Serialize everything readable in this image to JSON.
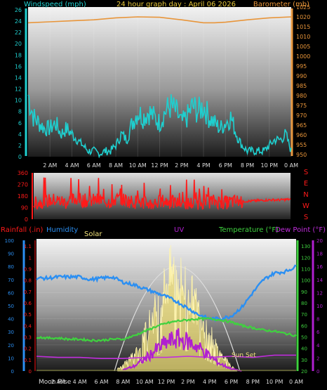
{
  "chart_data": [
    {
      "type": "line",
      "title": "24 hour graph day : April 06 2026",
      "left_axis_title": "Windspeed (mph)",
      "right_axis_title": "Barometer (mb)",
      "left_ticks": [
        0,
        2,
        4,
        6,
        8,
        10,
        12,
        14,
        16,
        18,
        20,
        22,
        24,
        26
      ],
      "right_ticks": [
        950,
        955,
        960,
        965,
        970,
        975,
        980,
        985,
        990,
        995,
        1000,
        1005,
        1010,
        1015,
        1020,
        1025
      ],
      "x_tick_labels": [
        "2 AM",
        "4 AM",
        "6 AM",
        "8 AM",
        "10 AM",
        "12 PM",
        "2 PM",
        "4 PM",
        "6 PM",
        "8 PM",
        "10 PM",
        "0 AM"
      ],
      "ylim_left": [
        0,
        26.5
      ],
      "ylim_right": [
        949,
        1025
      ],
      "x_hours_range": [
        0,
        24
      ],
      "series": [
        {
          "name": "Windspeed (mph)",
          "color": "#1fcfcf",
          "x_hours": [
            0.0,
            0.5,
            1.0,
            1.5,
            2.0,
            2.5,
            3.0,
            3.5,
            4.0,
            4.5,
            5.0,
            5.5,
            6.0,
            6.5,
            7.0,
            7.5,
            8.0,
            8.5,
            9.0,
            9.5,
            10.0,
            10.5,
            11.0,
            11.5,
            12.0,
            12.5,
            13.0,
            13.5,
            14.0,
            14.5,
            15.0,
            15.5,
            16.0,
            16.5,
            17.0,
            17.5,
            18.0,
            18.5,
            19.0,
            19.5,
            20.0,
            20.5,
            21.0,
            21.5,
            22.0,
            22.5,
            23.0,
            23.5,
            24.0
          ],
          "values": [
            11,
            7,
            6,
            5,
            5,
            6,
            4,
            5,
            4,
            3,
            2,
            1,
            1,
            0.5,
            1,
            1,
            2,
            4,
            3,
            6,
            8,
            7,
            8,
            7,
            6,
            8,
            9,
            8,
            6,
            7,
            9,
            8,
            9,
            7,
            6,
            5,
            6,
            7,
            4,
            2,
            1,
            1,
            1,
            1,
            2,
            3,
            3,
            4,
            1
          ]
        },
        {
          "name": "Barometer (mb)",
          "color": "#e8953a",
          "x_hours": [
            0,
            2,
            4,
            6,
            8,
            10,
            12,
            14,
            16,
            17,
            18,
            20,
            22,
            24
          ],
          "values": [
            1017,
            1017.5,
            1018,
            1018.5,
            1019.5,
            1020,
            1019.8,
            1018.5,
            1017,
            1017,
            1017.3,
            1018.5,
            1019.5,
            1020
          ]
        }
      ]
    },
    {
      "type": "line",
      "title": "",
      "left_ticks": [
        0,
        90,
        180,
        270,
        360
      ],
      "compass_labels": [
        "S",
        "E",
        "N",
        "W",
        "S"
      ],
      "ylim": [
        0,
        360
      ],
      "x_hours_range": [
        0,
        24
      ],
      "series": [
        {
          "name": "Wind direction (deg)",
          "color": "#ff1a1a",
          "x_hours": [
            0,
            1,
            2,
            3,
            4,
            5,
            6,
            7,
            8,
            9,
            10,
            11,
            12,
            13,
            14,
            15,
            16,
            17,
            18,
            19,
            20,
            21,
            22,
            23,
            24
          ],
          "values": [
            120,
            140,
            150,
            130,
            160,
            140,
            150,
            135,
            160,
            140,
            130,
            120,
            140,
            130,
            120,
            125,
            135,
            140,
            130,
            140,
            140,
            145,
            150,
            150,
            155
          ]
        }
      ]
    },
    {
      "type": "line",
      "title": "",
      "axis_titles": {
        "rainfall": "Rainfall (.in)",
        "humidity": "Humidity",
        "solar": "Solar",
        "uv": "UV",
        "temperature": "Temperature (°F)",
        "dewpoint": "Dew Point (°F)"
      },
      "rain_ticks": [
        0,
        0.1,
        0.2,
        0.3,
        0.4,
        0.5,
        0.6,
        0.7,
        0.8,
        0.9,
        1,
        1.1
      ],
      "humidity_ticks": [
        0,
        10,
        20,
        30,
        40,
        50,
        60,
        70,
        80,
        90,
        100
      ],
      "temperature_ticks": [
        20,
        30,
        40,
        50,
        60,
        70,
        80,
        90,
        100,
        110,
        120,
        130
      ],
      "uv_ticks": [
        0,
        2,
        4,
        6,
        8,
        10,
        12,
        14,
        16,
        18,
        20
      ],
      "x_tick_labels": [
        "2 AM",
        "4 AM",
        "6 AM",
        "8 AM",
        "10 AM",
        "12 PM",
        "2 PM",
        "4 PM",
        "6 PM",
        "8 PM",
        "10 PM",
        "0 AM"
      ],
      "moon_rise_label": "Moon Rise",
      "sun_set_label": "Sun Set",
      "x_hours_range": [
        0,
        24
      ],
      "series": [
        {
          "name": "Humidity",
          "color": "#2b8ff2",
          "x_hours": [
            0,
            1,
            2,
            3,
            4,
            5,
            6,
            7,
            8,
            9,
            10,
            11,
            12,
            13,
            14,
            15,
            16,
            17,
            18,
            19,
            20,
            21,
            22,
            23,
            24
          ],
          "values": [
            71,
            71,
            72,
            72,
            72,
            70,
            71,
            72,
            68,
            66,
            63,
            60,
            57,
            53,
            48,
            43,
            40,
            40,
            42,
            49,
            60,
            70,
            75,
            76,
            80
          ]
        },
        {
          "name": "Temperature (°F)",
          "color": "#3fd23f",
          "x_hours": [
            0,
            1,
            2,
            3,
            4,
            5,
            6,
            7,
            8,
            9,
            10,
            11,
            12,
            13,
            14,
            15,
            16,
            17,
            18,
            19,
            20,
            21,
            22,
            23,
            24
          ],
          "values": [
            50,
            49,
            49,
            48,
            48,
            47,
            47,
            48,
            48,
            51,
            55,
            59,
            62,
            64,
            65,
            66,
            66,
            65,
            63,
            60,
            58,
            56,
            55,
            53,
            51
          ]
        },
        {
          "name": "Dew Point (°F)",
          "color": "#c02ddc",
          "x_hours": [
            0,
            2,
            4,
            6,
            8,
            10,
            12,
            14,
            16,
            18,
            20,
            22,
            24
          ],
          "values": [
            33,
            32,
            32,
            31,
            31,
            32,
            32,
            33,
            32,
            33,
            32,
            34,
            34
          ]
        },
        {
          "name": "UV",
          "color": "#b020d0",
          "x_hours": [
            8,
            9,
            10,
            11,
            12,
            13,
            14,
            15,
            16,
            17,
            18,
            19
          ],
          "values": [
            0.2,
            0.8,
            2,
            3.5,
            4.8,
            5.5,
            5,
            4,
            2.5,
            1.2,
            0.4,
            0
          ]
        },
        {
          "name": "Solar",
          "color": "#f2e27a",
          "x_hours": [
            7.5,
            8,
            9,
            10,
            11,
            12,
            12.5,
            13,
            13.5,
            14,
            15,
            16,
            17,
            18,
            18.5
          ],
          "values": [
            0.02,
            0.05,
            0.15,
            0.35,
            0.55,
            0.8,
            0.9,
            0.85,
            0.8,
            0.75,
            0.55,
            0.35,
            0.15,
            0.05,
            0
          ]
        },
        {
          "name": "Rainfall (.in)",
          "color": "#8a8a3a",
          "x_hours": [
            0,
            24
          ],
          "values": [
            0,
            0
          ]
        }
      ]
    }
  ]
}
